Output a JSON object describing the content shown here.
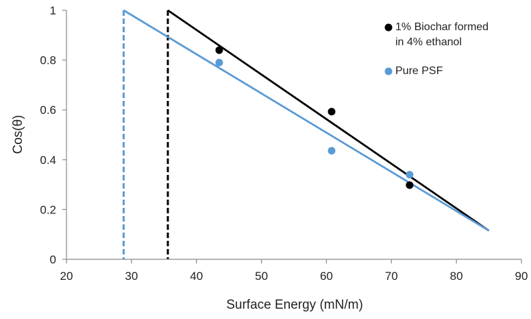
{
  "chart_data": {
    "type": "scatter",
    "xlabel": "Surface Energy (mN/m)",
    "ylabel": "Cos(θ)",
    "xlim": [
      20,
      90
    ],
    "ylim": [
      0,
      1
    ],
    "xticks": [
      20,
      30,
      40,
      50,
      60,
      70,
      80,
      90
    ],
    "yticks": [
      0,
      0.2,
      0.4,
      0.6,
      0.8,
      1
    ],
    "grid": false,
    "legend_position": "top-right",
    "series": [
      {
        "name": "1% Biochar formed in 4% ethanol",
        "legend_lines": [
          "1% Biochar formed",
          "in 4% ethanol"
        ],
        "color": "#000000",
        "points": [
          [
            43.5,
            0.84
          ],
          [
            60.8,
            0.593
          ],
          [
            72.8,
            0.298
          ]
        ],
        "fit_line": [
          [
            35.6,
            1.0
          ],
          [
            85.0,
            0.115
          ]
        ],
        "critical_surface_energy": 35.6
      },
      {
        "name": "Pure PSF",
        "legend_lines": [
          "Pure PSF"
        ],
        "color": "#5b9bd5",
        "points": [
          [
            43.5,
            0.79
          ],
          [
            60.8,
            0.436
          ],
          [
            72.8,
            0.34
          ]
        ],
        "fit_line": [
          [
            28.8,
            1.0
          ],
          [
            85.0,
            0.115
          ]
        ],
        "critical_surface_energy": 28.8
      }
    ]
  }
}
